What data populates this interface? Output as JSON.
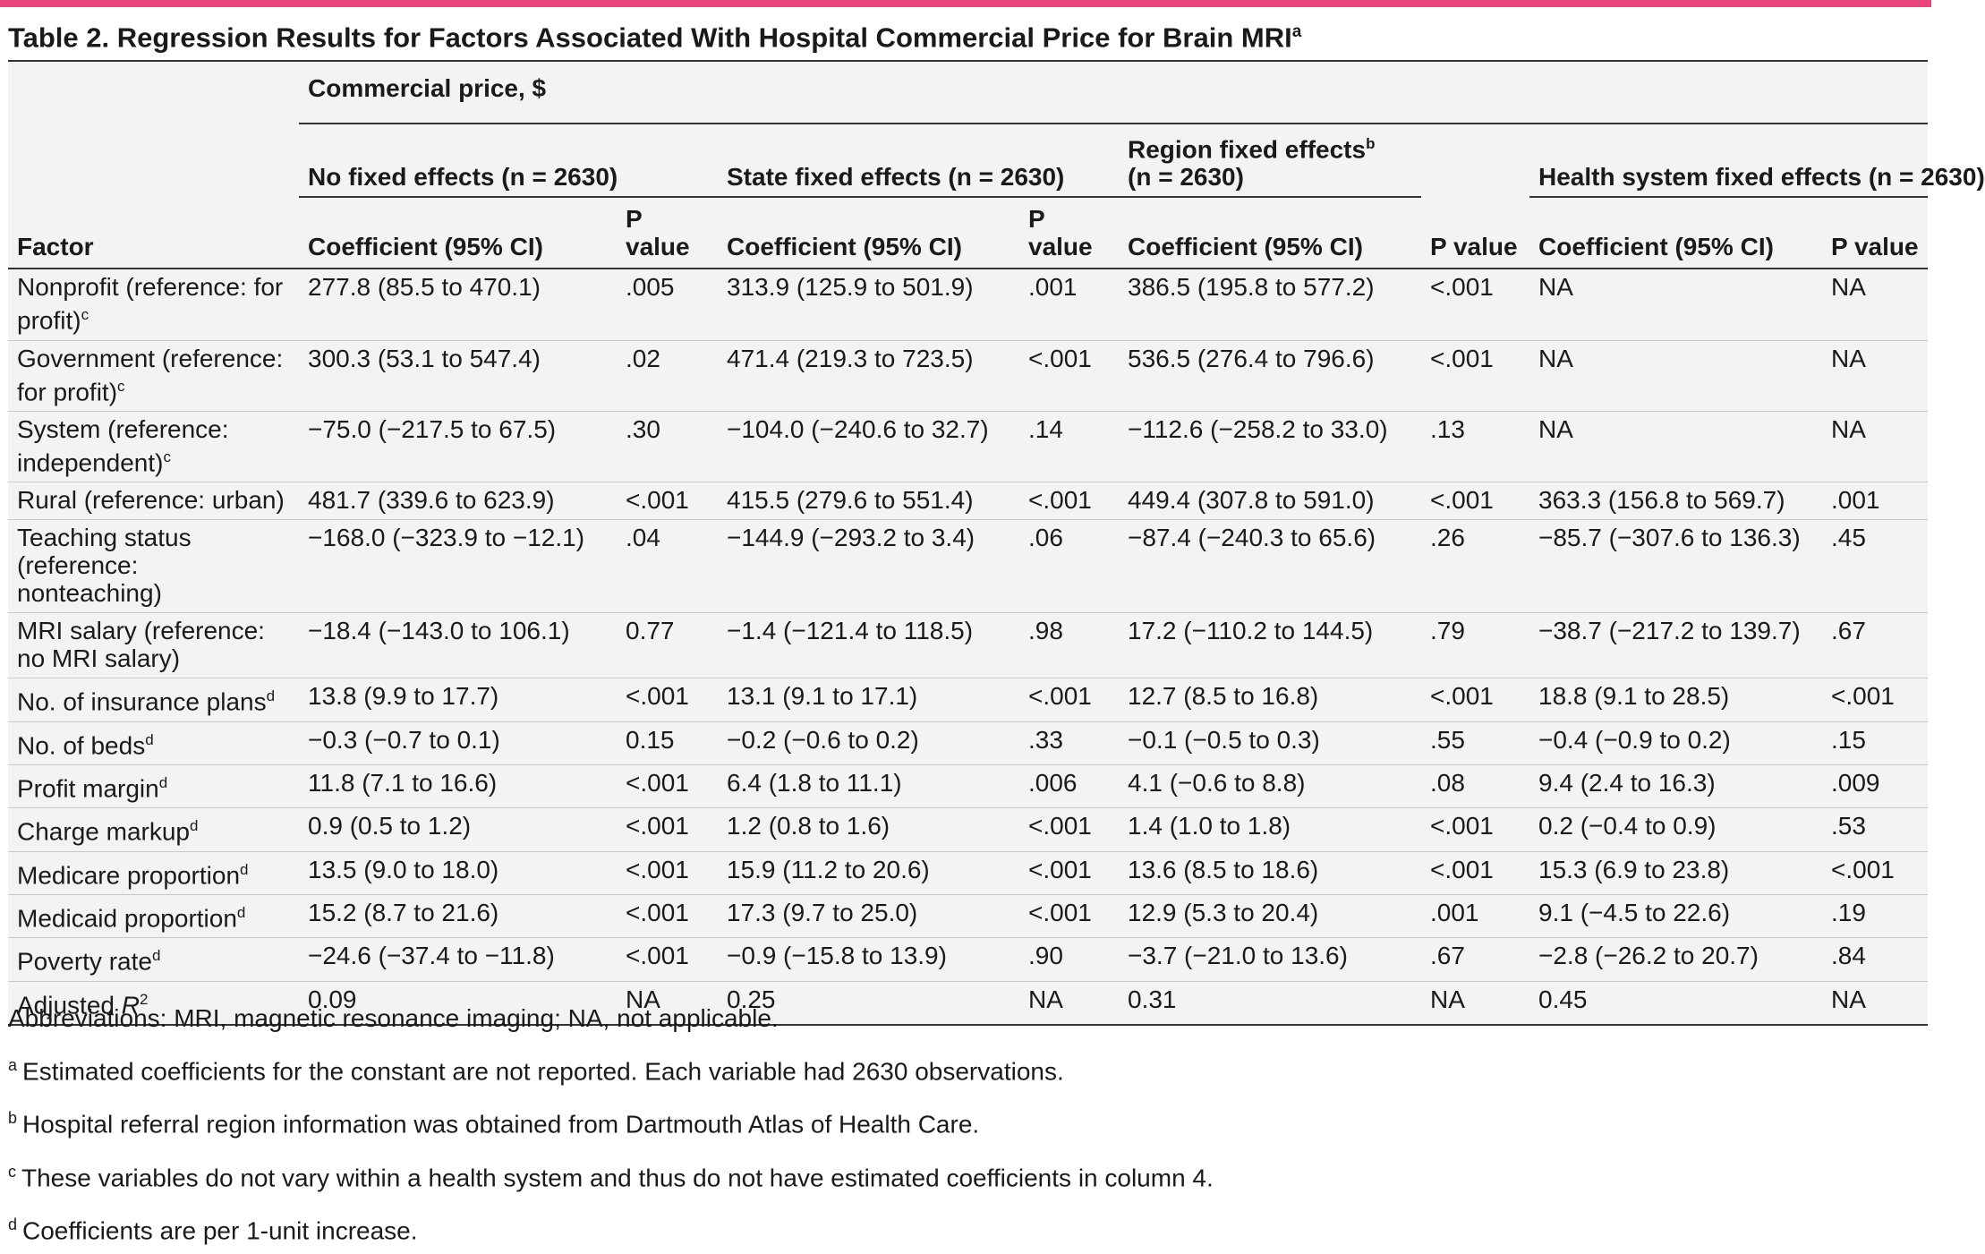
{
  "title": "Table 2. Regression Results for Factors Associated With Hospital Commercial Price for Brain MRI",
  "title_sup": "a",
  "header": {
    "group_label": "Commercial price, $",
    "models": [
      {
        "label": "No fixed effects (n = 2630)",
        "sup": ""
      },
      {
        "label": "State fixed effects (n = 2630)",
        "sup": ""
      },
      {
        "label_line1": "Region fixed effects",
        "sup": "b",
        "label_line2": "(n = 2630)"
      },
      {
        "label": "Health system fixed effects (n = 2630)",
        "sup": ""
      }
    ],
    "factor_label": "Factor",
    "coef_label": "Coefficient (95% CI)",
    "p_label": "P value"
  },
  "rows": [
    {
      "factor": "Nonprofit (reference: for profit)",
      "sup": "c",
      "cells": [
        "277.8 (85.5 to 470.1)",
        ".005",
        "313.9 (125.9 to 501.9)",
        ".001",
        "386.5 (195.8 to 577.2)",
        "<.001",
        "NA",
        "NA"
      ]
    },
    {
      "factor": "Government (reference: for profit)",
      "sup": "c",
      "cells": [
        "300.3 (53.1 to 547.4)",
        ".02",
        "471.4 (219.3 to 723.5)",
        "<.001",
        "536.5 (276.4 to 796.6)",
        "<.001",
        "NA",
        "NA"
      ]
    },
    {
      "factor": "System (reference: independent)",
      "sup": "c",
      "cells": [
        "−75.0 (−217.5 to 67.5)",
        ".30",
        "−104.0 (−240.6 to 32.7)",
        ".14",
        "−112.6 (−258.2 to 33.0)",
        ".13",
        "NA",
        "NA"
      ]
    },
    {
      "factor": "Rural (reference: urban)",
      "sup": "",
      "cells": [
        "481.7 (339.6 to 623.9)",
        "<.001",
        "415.5 (279.6 to 551.4)",
        "<.001",
        "449.4 (307.8 to 591.0)",
        "<.001",
        "363.3 (156.8 to 569.7)",
        ".001"
      ]
    },
    {
      "factor": "Teaching status (reference: nonteaching)",
      "sup": "",
      "cells": [
        "−168.0 (−323.9 to −12.1)",
        ".04",
        "−144.9 (−293.2 to 3.4)",
        ".06",
        "−87.4 (−240.3 to 65.6)",
        ".26",
        "−85.7 (−307.6 to 136.3)",
        ".45"
      ]
    },
    {
      "factor": "MRI salary (reference: no MRI salary)",
      "sup": "",
      "cells": [
        "−18.4 (−143.0 to 106.1)",
        "0.77",
        "−1.4 (−121.4 to 118.5)",
        ".98",
        "17.2 (−110.2 to 144.5)",
        ".79",
        "−38.7 (−217.2 to 139.7)",
        ".67"
      ]
    },
    {
      "factor": "No. of insurance plans",
      "sup": "d",
      "cells": [
        "13.8 (9.9 to 17.7)",
        "<.001",
        "13.1 (9.1 to 17.1)",
        "<.001",
        "12.7 (8.5 to 16.8)",
        "<.001",
        "18.8 (9.1 to 28.5)",
        "<.001"
      ]
    },
    {
      "factor": "No. of beds",
      "sup": "d",
      "cells": [
        "−0.3 (−0.7 to 0.1)",
        "0.15",
        "−0.2 (−0.6 to 0.2)",
        ".33",
        "−0.1 (−0.5 to 0.3)",
        ".55",
        "−0.4 (−0.9 to 0.2)",
        ".15"
      ]
    },
    {
      "factor": "Profit margin",
      "sup": "d",
      "cells": [
        "11.8 (7.1 to 16.6)",
        "<.001",
        "6.4 (1.8 to 11.1)",
        ".006",
        "4.1 (−0.6 to 8.8)",
        ".08",
        "9.4 (2.4 to 16.3)",
        ".009"
      ]
    },
    {
      "factor": "Charge markup",
      "sup": "d",
      "cells": [
        "0.9 (0.5 to 1.2)",
        "<.001",
        "1.2 (0.8 to 1.6)",
        "<.001",
        "1.4 (1.0 to 1.8)",
        "<.001",
        "0.2 (−0.4 to 0.9)",
        ".53"
      ]
    },
    {
      "factor": "Medicare proportion",
      "sup": "d",
      "cells": [
        "13.5 (9.0 to 18.0)",
        "<.001",
        "15.9 (11.2 to 20.6)",
        "<.001",
        "13.6 (8.5 to 18.6)",
        "<.001",
        "15.3 (6.9 to 23.8)",
        "<.001"
      ]
    },
    {
      "factor": "Medicaid proportion",
      "sup": "d",
      "cells": [
        "15.2 (8.7 to 21.6)",
        "<.001",
        "17.3 (9.7 to 25.0)",
        "<.001",
        "12.9 (5.3 to 20.4)",
        ".001",
        "9.1 (−4.5 to 22.6)",
        ".19"
      ]
    },
    {
      "factor": "Poverty rate",
      "sup": "d",
      "cells": [
        "−24.6 (−37.4 to −11.8)",
        "<.001",
        "−0.9 (−15.8 to 13.9)",
        ".90",
        "−3.7 (−21.0 to 13.6)",
        ".67",
        "−2.8 (−26.2 to 20.7)",
        ".84"
      ]
    },
    {
      "factor": "Adjusted",
      "italic": "R",
      "sup": "2",
      "cells": [
        "0.09",
        "NA",
        "0.25",
        "NA",
        "0.31",
        "NA",
        "0.45",
        "NA"
      ]
    }
  ],
  "notes": {
    "abbrev": "Abbreviations: MRI, magnetic resonance imaging; NA, not applicable.",
    "footnotes": [
      {
        "mark": "a",
        "text": "Estimated coefficients for the constant are not reported. Each variable had 2630 observations."
      },
      {
        "mark": "b",
        "text": "Hospital referral region information was obtained from Dartmouth Atlas of Health Care."
      },
      {
        "mark": "c",
        "text": "These variables do not vary within a health system and thus do not have estimated coefficients in column 4."
      },
      {
        "mark": "d",
        "text": "Coefficients are per 1-unit increase."
      }
    ]
  },
  "colors": {
    "accent_bar": "#e8457c",
    "table_bg": "#f3f3f1"
  }
}
